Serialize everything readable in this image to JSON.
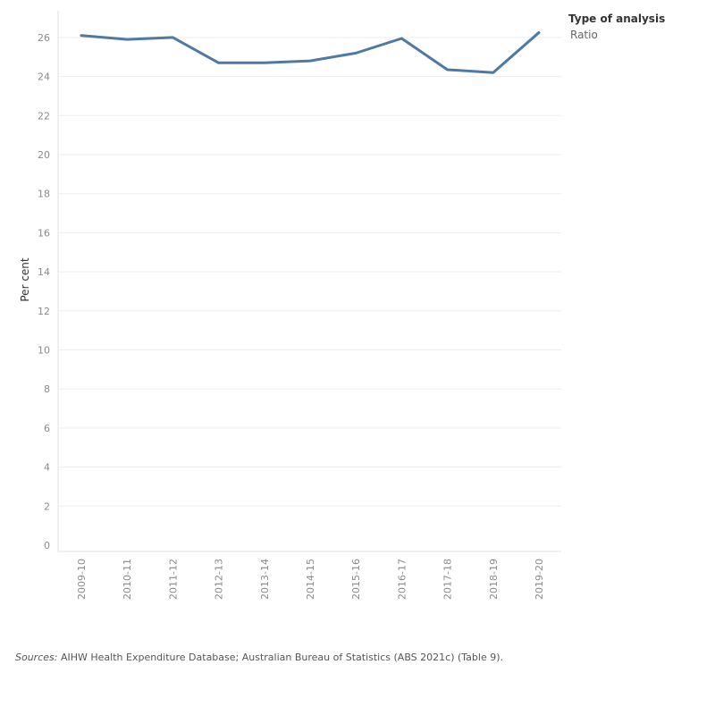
{
  "chart_data": {
    "type": "line",
    "categories": [
      "2009-10",
      "2010-11",
      "2011-12",
      "2012-13",
      "2013-14",
      "2014-15",
      "2015-16",
      "2016-17",
      "2017-18",
      "2018-19",
      "2019-20"
    ],
    "series": [
      {
        "name": "Ratio",
        "values": [
          26.1,
          25.9,
          26.0,
          24.7,
          24.7,
          24.8,
          25.2,
          25.95,
          24.35,
          24.2,
          26.25
        ],
        "color": "#4e79a7"
      }
    ],
    "ylabel": "Per cent",
    "xlabel": "",
    "ylim": [
      0,
      27.5
    ],
    "yticks": [
      0,
      2,
      4,
      6,
      8,
      10,
      12,
      14,
      16,
      18,
      20,
      22,
      24,
      26
    ],
    "grid": true,
    "legend": {
      "title": "Type of analysis",
      "position": "top-right"
    }
  },
  "legend": {
    "title": "Type of analysis",
    "items": [
      "Ratio"
    ]
  },
  "source": {
    "label": "Sources:",
    "text": " AIHW Health Expenditure Database; Australian Bureau of Statistics (ABS 2021c) (Table 9)."
  }
}
